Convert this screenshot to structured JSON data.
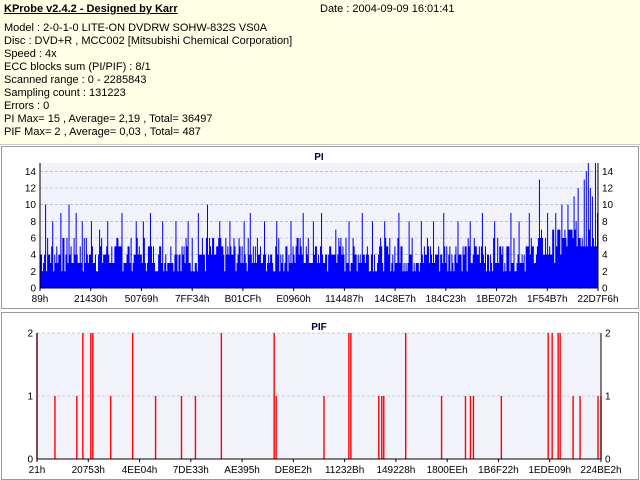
{
  "header": {
    "app_title": "KProbe v2.4.2 - Designed by Karr",
    "date": "Date : 2004-09-09 16:01:41",
    "lines": [
      "Model : 2-0-1-0 LITE-ON DVDRW SOHW-832S  VS0A",
      "Disc : DVD+R , MCC002 [Mitsubishi Chemical Corporation]",
      "Speed : 4x",
      "ECC blocks sum (PI/PIF) : 8/1",
      "Scanned range : 0 - 2285843",
      "Sampling count : 131223",
      "Errors : 0",
      "PI Max= 15 , Average= 2,19 , Total= 36497",
      "PIF Max= 2 , Average= 0,03 , Total= 487"
    ]
  },
  "colors": {
    "pi_bar": "#0000ff",
    "pif_bar": "#ff0000",
    "plot_bg": "#f2f2fa",
    "info_bg": "#ffffe6"
  },
  "chart_data": [
    {
      "type": "bar",
      "title": "PI",
      "ylim": [
        0,
        15
      ],
      "y_ticks": [
        0,
        2,
        4,
        6,
        8,
        10,
        12,
        14
      ],
      "x_range": [
        137,
        2285843
      ],
      "x_tick_labels": [
        "89h",
        "21430h",
        "50769h",
        "7FF34h",
        "B01CFh",
        "E0960h",
        "114487h",
        "14C8E7h",
        "184C23h",
        "1BE072h",
        "1F54B7h",
        "22D7F6h"
      ],
      "baseline_range": [
        2,
        6
      ],
      "spikes": [
        {
          "i": 5,
          "v": 10
        },
        {
          "i": 12,
          "v": 8
        },
        {
          "i": 20,
          "v": 9
        },
        {
          "i": 28,
          "v": 10
        },
        {
          "i": 35,
          "v": 9
        },
        {
          "i": 41,
          "v": 8
        },
        {
          "i": 50,
          "v": 8
        },
        {
          "i": 58,
          "v": 7
        },
        {
          "i": 66,
          "v": 8
        },
        {
          "i": 80,
          "v": 9
        },
        {
          "i": 94,
          "v": 8
        },
        {
          "i": 101,
          "v": 8
        },
        {
          "i": 108,
          "v": 9
        },
        {
          "i": 120,
          "v": 8
        },
        {
          "i": 133,
          "v": 8
        },
        {
          "i": 145,
          "v": 8
        },
        {
          "i": 155,
          "v": 9
        },
        {
          "i": 164,
          "v": 10
        },
        {
          "i": 176,
          "v": 8
        },
        {
          "i": 186,
          "v": 8
        },
        {
          "i": 200,
          "v": 8
        },
        {
          "i": 206,
          "v": 9
        },
        {
          "i": 220,
          "v": 8
        },
        {
          "i": 232,
          "v": 8
        },
        {
          "i": 246,
          "v": 8
        },
        {
          "i": 258,
          "v": 9
        },
        {
          "i": 268,
          "v": 8
        },
        {
          "i": 276,
          "v": 9
        },
        {
          "i": 290,
          "v": 7
        },
        {
          "i": 303,
          "v": 8
        },
        {
          "i": 316,
          "v": 9
        },
        {
          "i": 326,
          "v": 8
        },
        {
          "i": 338,
          "v": 8
        },
        {
          "i": 352,
          "v": 9
        },
        {
          "i": 362,
          "v": 8
        },
        {
          "i": 374,
          "v": 8
        },
        {
          "i": 386,
          "v": 8
        },
        {
          "i": 396,
          "v": 9
        },
        {
          "i": 410,
          "v": 8
        },
        {
          "i": 422,
          "v": 8
        },
        {
          "i": 434,
          "v": 9
        },
        {
          "i": 446,
          "v": 8
        },
        {
          "i": 462,
          "v": 9
        },
        {
          "i": 470,
          "v": 8
        },
        {
          "i": 480,
          "v": 9
        },
        {
          "i": 490,
          "v": 13
        },
        {
          "i": 498,
          "v": 9
        },
        {
          "i": 506,
          "v": 9
        },
        {
          "i": 512,
          "v": 10
        },
        {
          "i": 518,
          "v": 10
        },
        {
          "i": 524,
          "v": 11
        },
        {
          "i": 528,
          "v": 12
        },
        {
          "i": 534,
          "v": 13
        },
        {
          "i": 536,
          "v": 14
        },
        {
          "i": 538,
          "v": 15
        },
        {
          "i": 540,
          "v": 12
        },
        {
          "i": 542,
          "v": 11
        },
        {
          "i": 545,
          "v": 15
        },
        {
          "i": 547,
          "v": 9
        }
      ],
      "samples": 548
    },
    {
      "type": "bar",
      "title": "PIF",
      "ylim": [
        0,
        2
      ],
      "y_ticks": [
        0,
        1,
        2
      ],
      "x_range": [
        33,
        2285843
      ],
      "x_tick_labels": [
        "21h",
        "20753h",
        "4EE04h",
        "7DE33h",
        "AE395h",
        "DE8E2h",
        "11232Bh",
        "149228h",
        "1800EEh",
        "1B6F22h",
        "1EDE09h",
        "224BE2h"
      ],
      "pulses": [
        {
          "x": 33,
          "v": 2
        },
        {
          "x": 51,
          "v": 1
        },
        {
          "x": 73,
          "v": 1
        },
        {
          "x": 79,
          "v": 2
        },
        {
          "x": 87,
          "v": 2
        },
        {
          "x": 89,
          "v": 2
        },
        {
          "x": 107,
          "v": 1
        },
        {
          "x": 129,
          "v": 2
        },
        {
          "x": 152,
          "v": 1
        },
        {
          "x": 178,
          "v": 1
        },
        {
          "x": 192,
          "v": 1
        },
        {
          "x": 218,
          "v": 2
        },
        {
          "x": 271,
          "v": 2
        },
        {
          "x": 273,
          "v": 1
        },
        {
          "x": 321,
          "v": 1
        },
        {
          "x": 346,
          "v": 2
        },
        {
          "x": 348,
          "v": 2
        },
        {
          "x": 376,
          "v": 1
        },
        {
          "x": 379,
          "v": 1
        },
        {
          "x": 381,
          "v": 1
        },
        {
          "x": 403,
          "v": 2
        },
        {
          "x": 439,
          "v": 1
        },
        {
          "x": 463,
          "v": 1
        },
        {
          "x": 468,
          "v": 1
        },
        {
          "x": 471,
          "v": 1
        },
        {
          "x": 499,
          "v": 1
        },
        {
          "x": 546,
          "v": 2
        },
        {
          "x": 550,
          "v": 2
        },
        {
          "x": 556,
          "v": 2
        },
        {
          "x": 558,
          "v": 2
        },
        {
          "x": 571,
          "v": 1
        },
        {
          "x": 578,
          "v": 1
        },
        {
          "x": 596,
          "v": 1
        },
        {
          "x": 599,
          "v": 1
        }
      ]
    }
  ]
}
